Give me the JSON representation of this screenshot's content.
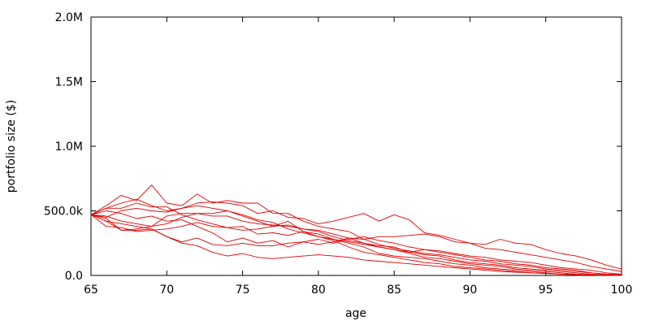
{
  "chart_data": {
    "type": "line",
    "title": "",
    "xlabel": "age",
    "ylabel": "portfolio size ($)",
    "xlim": [
      65,
      100
    ],
    "ylim": [
      0,
      2000000
    ],
    "x_ticks": [
      65,
      70,
      75,
      80,
      85,
      90,
      95,
      100
    ],
    "x_tick_labels": [
      "65",
      "70",
      "75",
      "80",
      "85",
      "90",
      "95",
      "100"
    ],
    "y_ticks": [
      0,
      500000,
      1000000,
      1500000,
      2000000
    ],
    "y_tick_labels": [
      "0.0",
      "500.0k",
      "1.0M",
      "1.5M",
      "2.0M"
    ],
    "grid": false,
    "legend": "none",
    "line_color": "#e00000",
    "x": [
      65,
      66,
      67,
      68,
      69,
      70,
      71,
      72,
      73,
      74,
      75,
      76,
      77,
      78,
      79,
      80,
      81,
      82,
      83,
      84,
      85,
      86,
      87,
      88,
      89,
      90,
      91,
      92,
      93,
      94,
      95,
      96,
      97,
      98,
      99,
      100
    ],
    "series": [
      {
        "values": [
          470000,
          540000,
          620000,
          580000,
          700000,
          560000,
          540000,
          630000,
          560000,
          580000,
          560000,
          560000,
          480000,
          480000,
          420000,
          380000,
          360000,
          340000,
          280000,
          300000,
          300000,
          310000,
          320000,
          300000,
          260000,
          250000,
          240000,
          280000,
          250000,
          240000,
          200000,
          170000,
          150000,
          120000,
          80000,
          50000
        ]
      },
      {
        "values": [
          470000,
          520000,
          560000,
          590000,
          540000,
          500000,
          520000,
          560000,
          570000,
          560000,
          540000,
          480000,
          500000,
          450000,
          440000,
          400000,
          420000,
          450000,
          480000,
          420000,
          470000,
          430000,
          330000,
          310000,
          280000,
          250000,
          210000,
          200000,
          180000,
          160000,
          140000,
          120000,
          100000,
          70000,
          50000,
          30000
        ]
      },
      {
        "values": [
          470000,
          500000,
          480000,
          440000,
          460000,
          420000,
          430000,
          380000,
          330000,
          260000,
          290000,
          250000,
          270000,
          220000,
          260000,
          280000,
          250000,
          280000,
          300000,
          270000,
          250000,
          220000,
          200000,
          190000,
          170000,
          150000,
          140000,
          120000,
          110000,
          100000,
          80000,
          60000,
          50000,
          40000,
          20000,
          10000
        ]
      },
      {
        "values": [
          470000,
          420000,
          400000,
          380000,
          360000,
          300000,
          260000,
          290000,
          240000,
          230000,
          250000,
          230000,
          230000,
          250000,
          260000,
          240000,
          260000,
          290000,
          250000,
          220000,
          200000,
          180000,
          200000,
          180000,
          160000,
          140000,
          120000,
          110000,
          90000,
          80000,
          60000,
          50000,
          40000,
          20000,
          10000,
          5000
        ]
      },
      {
        "values": [
          470000,
          460000,
          420000,
          400000,
          380000,
          400000,
          450000,
          480000,
          460000,
          460000,
          420000,
          400000,
          390000,
          380000,
          360000,
          350000,
          320000,
          290000,
          280000,
          240000,
          210000,
          190000,
          170000,
          160000,
          140000,
          120000,
          110000,
          90000,
          80000,
          70000,
          50000,
          40000,
          30000,
          20000,
          10000,
          5000
        ]
      },
      {
        "values": [
          470000,
          440000,
          350000,
          360000,
          380000,
          460000,
          480000,
          480000,
          480000,
          500000,
          460000,
          420000,
          380000,
          390000,
          360000,
          340000,
          300000,
          270000,
          250000,
          230000,
          220000,
          180000,
          160000,
          150000,
          120000,
          100000,
          90000,
          80000,
          60000,
          50000,
          40000,
          30000,
          20000,
          10000,
          5000,
          2000
        ]
      },
      {
        "values": [
          470000,
          380000,
          370000,
          340000,
          350000,
          360000,
          380000,
          410000,
          380000,
          370000,
          350000,
          360000,
          380000,
          420000,
          340000,
          320000,
          280000,
          250000,
          220000,
          170000,
          150000,
          140000,
          130000,
          110000,
          90000,
          80000,
          60000,
          50000,
          40000,
          30000,
          20000,
          10000,
          5000,
          3000,
          2000,
          1000
        ]
      },
      {
        "values": [
          470000,
          520000,
          520000,
          560000,
          530000,
          530000,
          470000,
          430000,
          400000,
          370000,
          380000,
          320000,
          330000,
          310000,
          340000,
          300000,
          270000,
          220000,
          180000,
          160000,
          140000,
          120000,
          100000,
          90000,
          70000,
          60000,
          50000,
          40000,
          30000,
          20000,
          15000,
          10000,
          5000,
          3000,
          2000,
          1000
        ]
      },
      {
        "values": [
          470000,
          450000,
          500000,
          520000,
          500000,
          490000,
          520000,
          540000,
          520000,
          500000,
          470000,
          430000,
          410000,
          360000,
          330000,
          300000,
          280000,
          260000,
          240000,
          220000,
          200000,
          170000,
          140000,
          130000,
          110000,
          90000,
          80000,
          70000,
          50000,
          40000,
          30000,
          20000,
          10000,
          5000,
          3000,
          2000
        ]
      },
      {
        "values": [
          470000,
          420000,
          350000,
          350000,
          360000,
          300000,
          250000,
          230000,
          180000,
          150000,
          170000,
          140000,
          130000,
          140000,
          150000,
          160000,
          150000,
          140000,
          120000,
          110000,
          100000,
          90000,
          80000,
          70000,
          60000,
          50000,
          40000,
          30000,
          25000,
          20000,
          15000,
          10000,
          5000,
          3000,
          2000,
          1000
        ]
      }
    ]
  }
}
